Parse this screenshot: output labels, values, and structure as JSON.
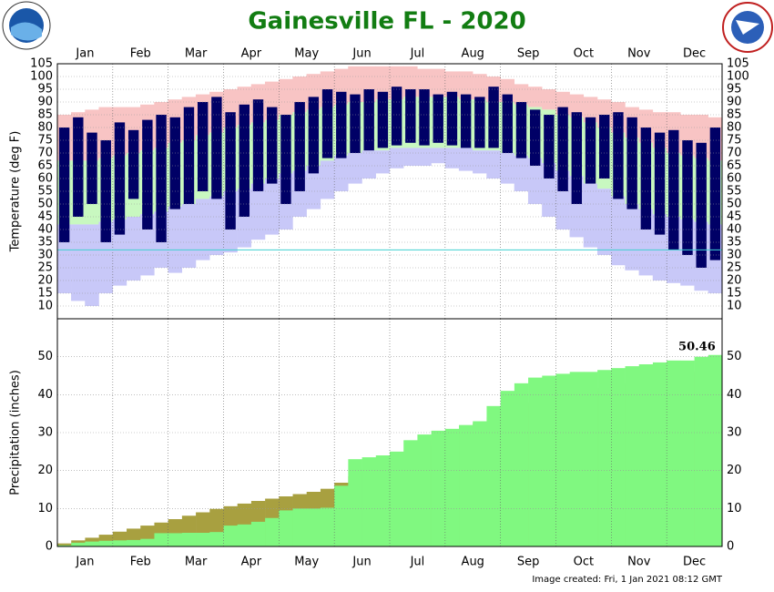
{
  "title": "Gainesville FL - 2020",
  "footer": "Image created: Fri, 1 Jan 2021 08:12 GMT",
  "chart_data": [
    {
      "type": "range-bar",
      "y_label": "Temperature (deg F)",
      "categories": [
        "Jan",
        null,
        null,
        null,
        "Feb",
        null,
        null,
        null,
        "Mar",
        null,
        null,
        null,
        "Apr",
        null,
        null,
        null,
        "May",
        null,
        null,
        null,
        "Jun",
        null,
        null,
        null,
        "Jul",
        null,
        null,
        null,
        "Aug",
        null,
        null,
        null,
        "Sep",
        null,
        null,
        null,
        "Oct",
        null,
        null,
        null,
        "Nov",
        null,
        null,
        null,
        "Dec",
        null,
        null,
        null
      ],
      "ylim": [
        5,
        105
      ],
      "yticks": [
        10,
        15,
        20,
        25,
        30,
        35,
        40,
        45,
        50,
        55,
        60,
        65,
        70,
        75,
        80,
        85,
        90,
        95,
        100,
        105
      ],
      "freeze_line": 32,
      "series": [
        {
          "color": "#f8c4c4",
          "values": [
            85,
            86,
            87,
            88,
            88,
            88,
            89,
            90,
            91,
            92,
            93,
            94,
            95,
            96,
            97,
            98,
            99,
            100,
            101,
            102,
            103,
            104,
            104,
            104,
            104,
            104,
            103,
            103,
            102,
            102,
            101,
            100,
            99,
            97,
            96,
            95,
            94,
            93,
            92,
            91,
            90,
            88,
            87,
            86,
            86,
            85,
            85,
            84
          ]
        },
        {
          "color": "#c8f8c0",
          "values": [
            67,
            67,
            67,
            68,
            69,
            70,
            71,
            72,
            74,
            75,
            77,
            78,
            80,
            81,
            82,
            83,
            85,
            86,
            87,
            88,
            89,
            90,
            90,
            91,
            91,
            92,
            92,
            92,
            92,
            91,
            91,
            90,
            90,
            89,
            88,
            87,
            85,
            84,
            82,
            80,
            78,
            76,
            74,
            72,
            70,
            69,
            68,
            67
          ]
        },
        {
          "color": "#c8c8f8",
          "values": [
            42,
            42,
            42,
            43,
            44,
            45,
            46,
            47,
            49,
            50,
            52,
            53,
            55,
            56,
            58,
            60,
            62,
            63,
            65,
            67,
            69,
            70,
            71,
            71,
            72,
            72,
            72,
            72,
            72,
            72,
            71,
            71,
            70,
            69,
            68,
            66,
            63,
            61,
            58,
            56,
            53,
            50,
            48,
            46,
            45,
            44,
            43,
            42
          ]
        },
        {
          "values": [
            15,
            12,
            10,
            15,
            18,
            20,
            22,
            25,
            23,
            25,
            28,
            30,
            31,
            33,
            36,
            38,
            40,
            45,
            48,
            52,
            55,
            58,
            60,
            62,
            64,
            65,
            65,
            66,
            64,
            63,
            62,
            60,
            58,
            55,
            50,
            45,
            40,
            37,
            33,
            30,
            26,
            24,
            22,
            20,
            19,
            18,
            16,
            15
          ]
        },
        {
          "color": "#000066",
          "values": [
            80,
            84,
            78,
            75,
            82,
            79,
            83,
            85,
            84,
            88,
            90,
            92,
            86,
            89,
            91,
            88,
            85,
            90,
            92,
            95,
            94,
            93,
            95,
            94,
            96,
            95,
            95,
            93,
            94,
            93,
            92,
            96,
            93,
            90,
            87,
            85,
            88,
            86,
            84,
            85,
            86,
            84,
            80,
            78,
            79,
            75,
            74,
            80
          ]
        },
        {
          "values": [
            35,
            45,
            50,
            35,
            38,
            52,
            40,
            35,
            48,
            50,
            55,
            52,
            40,
            45,
            55,
            58,
            50,
            55,
            62,
            68,
            68,
            70,
            71,
            72,
            73,
            74,
            73,
            74,
            73,
            72,
            72,
            72,
            70,
            68,
            65,
            60,
            55,
            50,
            58,
            60,
            52,
            48,
            40,
            38,
            32,
            30,
            25,
            28
          ]
        }
      ]
    },
    {
      "type": "step-area",
      "y_label": "Precipitation (inches)",
      "categories": [
        "Jan",
        null,
        null,
        null,
        "Feb",
        null,
        null,
        null,
        "Mar",
        null,
        null,
        null,
        "Apr",
        null,
        null,
        null,
        "May",
        null,
        null,
        null,
        "Jun",
        null,
        null,
        null,
        "Jul",
        null,
        null,
        null,
        "Aug",
        null,
        null,
        null,
        "Sep",
        null,
        null,
        null,
        "Oct",
        null,
        null,
        null,
        "Nov",
        null,
        null,
        null,
        "Dec",
        null,
        null,
        null
      ],
      "ylim": [
        0,
        60
      ],
      "yticks": [
        0,
        10,
        20,
        30,
        40,
        50
      ],
      "series": [
        {
          "color": "#a8a040",
          "values": [
            0.8,
            1.6,
            2.3,
            3.1,
            3.9,
            4.7,
            5.5,
            6.3,
            7.2,
            8.1,
            9.0,
            9.9,
            10.6,
            11.3,
            12.0,
            12.6,
            13.2,
            13.8,
            14.4,
            15.2,
            16.8,
            18.5,
            20.3,
            22.0,
            23.5,
            25.0,
            26.5,
            28.0,
            29.5,
            31.0,
            32.5,
            34.0,
            35.5,
            36.8,
            38.0,
            39.0,
            39.8,
            40.5,
            41.2,
            41.8,
            42.4,
            43.0,
            43.6,
            44.2,
            44.8,
            45.5,
            46.2,
            47.0
          ]
        },
        {
          "color": "#80f880",
          "values": [
            0.3,
            1.0,
            1.3,
            1.5,
            1.6,
            1.7,
            2.0,
            3.5,
            3.5,
            3.6,
            3.6,
            3.8,
            5.5,
            5.8,
            6.5,
            7.5,
            9.5,
            10.0,
            10.0,
            10.2,
            16,
            23,
            23.5,
            24,
            25,
            28,
            29.5,
            30.5,
            31,
            32,
            33,
            37,
            41,
            43,
            44.5,
            45,
            45.5,
            46,
            46,
            46.5,
            47,
            47.5,
            48,
            48.5,
            49,
            49,
            50,
            50.46
          ]
        }
      ]
    }
  ]
}
